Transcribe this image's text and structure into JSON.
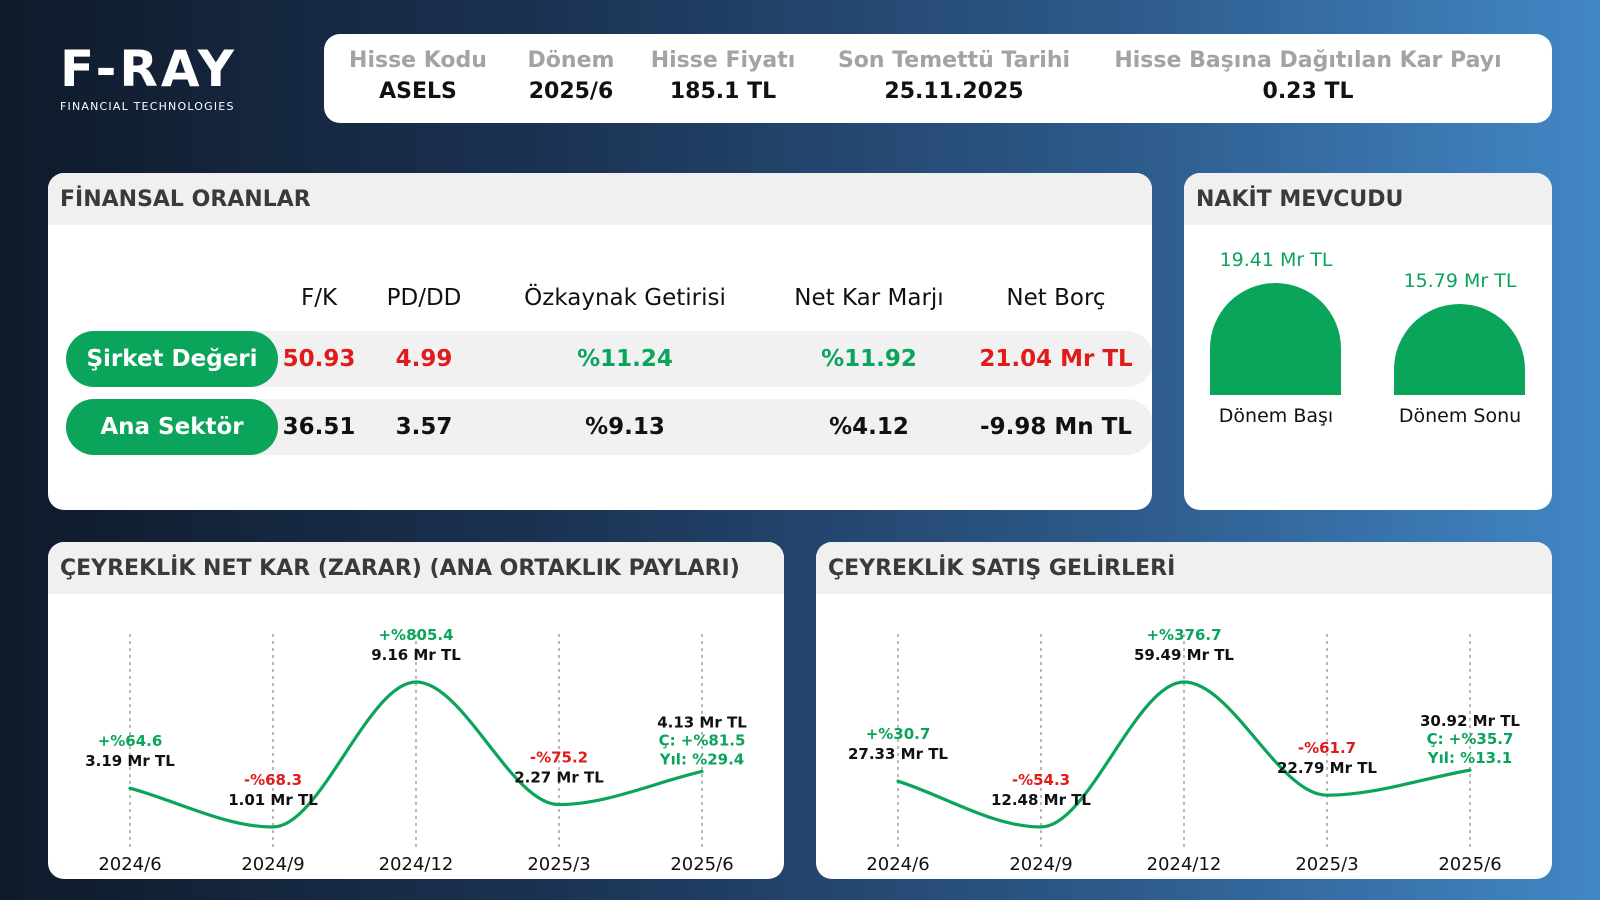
{
  "logo": {
    "main": "F-RAY",
    "sub": "FINANCIAL TECHNOLOGIES"
  },
  "info": [
    {
      "label": "Hisse Kodu",
      "value": "ASELS"
    },
    {
      "label": "Dönem",
      "value": "2025/6"
    },
    {
      "label": "Hisse Fiyatı",
      "value": "185.1 TL"
    },
    {
      "label": "Son Temettü Tarihi",
      "value": "25.11.2025"
    },
    {
      "label": "Hisse Başına Dağıtılan Kar Payı",
      "value": "0.23 TL"
    }
  ],
  "ratios": {
    "title": "FİNANSAL ORANLAR",
    "columns": [
      "F/K",
      "PD/DD",
      "Özkaynak Getirisi",
      "Net Kar Marjı",
      "Net Borç"
    ],
    "rows": [
      {
        "label": "Şirket Değeri",
        "values": [
          "50.93",
          "4.99",
          "%11.24",
          "%11.92",
          "21.04 Mr TL"
        ],
        "colors": [
          "#e01b1b",
          "#e01b1b",
          "#0aa45a",
          "#0aa45a",
          "#e01b1b"
        ]
      },
      {
        "label": "Ana Sektör",
        "values": [
          "36.51",
          "3.57",
          "%9.13",
          "%4.12",
          "-9.98 Mn TL"
        ],
        "colors": [
          "#111111",
          "#111111",
          "#111111",
          "#111111",
          "#111111"
        ]
      }
    ]
  },
  "cash": {
    "title": "NAKİT MEVCUDU",
    "items": [
      {
        "label": "Dönem Başı",
        "value_text": "19.41 Mr TL",
        "value": 19.41
      },
      {
        "label": "Dönem Sonu",
        "value_text": "15.79 Mr TL",
        "value": 15.79
      }
    ]
  },
  "chart_data": [
    {
      "type": "line",
      "title": "ÇEYREKLİK NET KAR (ZARAR) (ANA ORTAKLIK PAYLARI)",
      "categories": [
        "2024/6",
        "2024/9",
        "2024/12",
        "2025/3",
        "2025/6"
      ],
      "values": [
        3.19,
        1.01,
        9.16,
        2.27,
        4.13
      ],
      "value_labels": [
        "3.19 Mr TL",
        "1.01 Mr TL",
        "9.16 Mr TL",
        "2.27 Mr TL",
        "4.13 Mr TL"
      ],
      "change_labels": [
        "+%64.6",
        "-%68.3",
        "+%805.4",
        "-%75.2",
        "Ç: +%81.5"
      ],
      "change_positive": [
        true,
        false,
        true,
        false,
        true
      ],
      "yearly_label": "Yıl: %29.4",
      "line_color": "#0aa45a",
      "grid": "vertical dotted"
    },
    {
      "type": "line",
      "title": "ÇEYREKLİK SATIŞ GELİRLERİ",
      "categories": [
        "2024/6",
        "2024/9",
        "2024/12",
        "2025/3",
        "2025/6"
      ],
      "values": [
        27.33,
        12.48,
        59.49,
        22.79,
        30.92
      ],
      "value_labels": [
        "27.33 Mr TL",
        "12.48 Mr TL",
        "59.49 Mr TL",
        "22.79 Mr TL",
        "30.92 Mr TL"
      ],
      "change_labels": [
        "+%30.7",
        "-%54.3",
        "+%376.7",
        "-%61.7",
        "Ç: +%35.7"
      ],
      "change_positive": [
        true,
        false,
        true,
        false,
        true
      ],
      "yearly_label": "Yıl: %13.1",
      "line_color": "#0aa45a",
      "grid": "vertical dotted"
    }
  ]
}
